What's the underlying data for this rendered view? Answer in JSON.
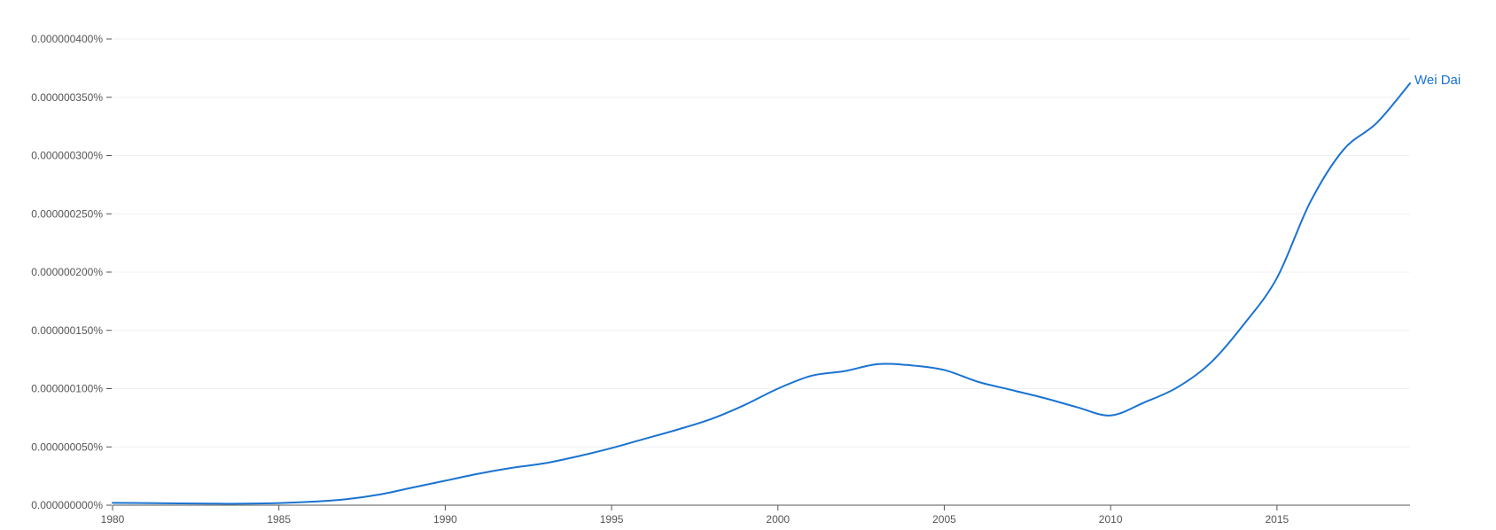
{
  "chart_data": {
    "type": "line",
    "xlim": [
      1980,
      2019
    ],
    "ylim": [
      0,
      4e-07
    ],
    "y_ticks": [
      0,
      5e-08,
      1e-07,
      1.5e-07,
      2e-07,
      2.5e-07,
      3e-07,
      3.5e-07,
      4e-07
    ],
    "y_tick_labels": [
      "0.000000000%",
      "0.000000050%",
      "0.000000100%",
      "0.000000150%",
      "0.000000200%",
      "0.000000250%",
      "0.000000300%",
      "0.000000350%",
      "0.000000400%"
    ],
    "x_ticks": [
      1980,
      1985,
      1990,
      1995,
      2000,
      2005,
      2010,
      2015
    ],
    "x_tick_labels": [
      "1980",
      "1985",
      "1990",
      "1995",
      "2000",
      "2005",
      "2010",
      "2015"
    ],
    "grid": true,
    "legend": "inline at line end",
    "series": [
      {
        "name": "Wei Dai",
        "color": "#1a73d1",
        "x": [
          1980,
          1981,
          1982,
          1983,
          1984,
          1985,
          1986,
          1987,
          1988,
          1989,
          1990,
          1991,
          1992,
          1993,
          1994,
          1995,
          1996,
          1997,
          1998,
          1999,
          2000,
          2001,
          2002,
          2003,
          2004,
          2005,
          2006,
          2007,
          2008,
          2009,
          2010,
          2011,
          2012,
          2013,
          2014,
          2015,
          2016,
          2017,
          2018,
          2019
        ],
        "values": [
          2e-09,
          1.8e-09,
          1.5e-09,
          1.3e-09,
          1.3e-09,
          1.8e-09,
          3e-09,
          5e-09,
          9e-09,
          1.5e-08,
          2.1e-08,
          2.7e-08,
          3.2e-08,
          3.6e-08,
          4.2e-08,
          4.9e-08,
          5.7e-08,
          6.5e-08,
          7.4e-08,
          8.6e-08,
          1e-07,
          1.11e-07,
          1.15e-07,
          1.21e-07,
          1.2e-07,
          1.16e-07,
          1.06e-07,
          9.9e-08,
          9.2e-08,
          8.4e-08,
          7.7e-08,
          8.8e-08,
          1.01e-07,
          1.22e-07,
          1.55e-07,
          1.95e-07,
          2.6e-07,
          3.05e-07,
          3.28e-07,
          3.62e-07
        ]
      }
    ]
  }
}
